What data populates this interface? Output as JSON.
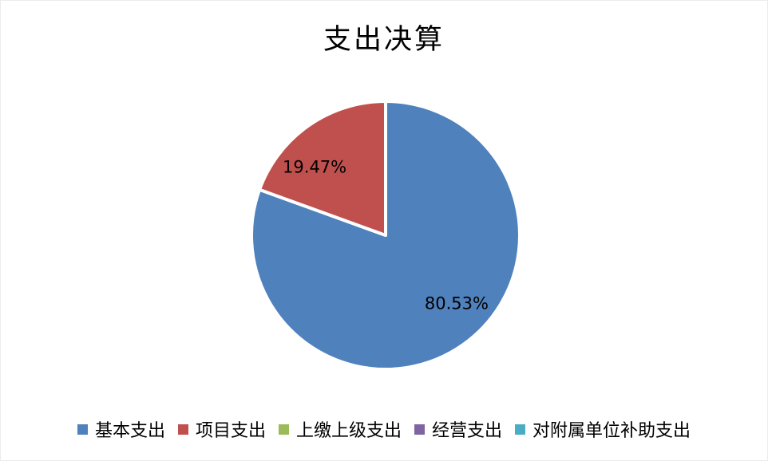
{
  "chart_data": {
    "type": "pie",
    "title": "支出决算",
    "series": [
      {
        "name": "基本支出",
        "value": 80.53,
        "data_label": "80.53%",
        "color": "#4F81BD"
      },
      {
        "name": "项目支出",
        "value": 19.47,
        "data_label": "19.47%",
        "color": "#C0504D"
      },
      {
        "name": "上缴上级支出",
        "value": 0,
        "data_label": "",
        "color": "#9BBB59"
      },
      {
        "name": "经营支出",
        "value": 0,
        "data_label": "",
        "color": "#8064A2"
      },
      {
        "name": "对附属单位补助支出",
        "value": 0,
        "data_label": "",
        "color": "#4BACC6"
      }
    ],
    "unit": "%",
    "start_angle": "top",
    "direction": "clockwise",
    "legend_position": "bottom",
    "slice_border_color": "#FFFFFF",
    "label_color": "#000000",
    "title_color": "#000000",
    "background_color": "#FFFFFF"
  }
}
